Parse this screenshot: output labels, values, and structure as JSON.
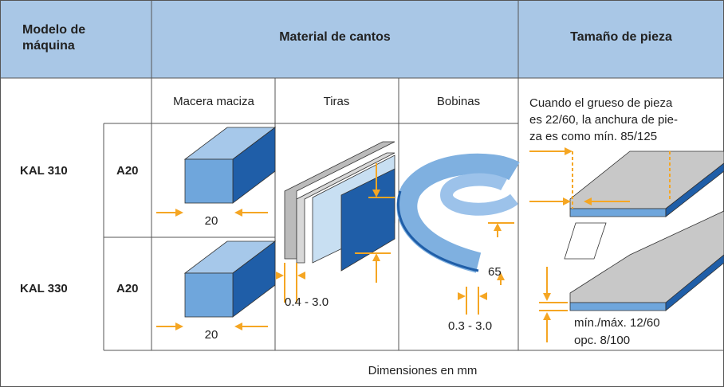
{
  "header": {
    "cells": [
      [
        "Modelo de",
        "máquina"
      ],
      [
        "Material de cantos"
      ],
      [
        "Tamaño de pieza"
      ]
    ]
  },
  "subheader": [
    "Macera maciza",
    "Tiras",
    "Bobinas"
  ],
  "note": [
    "Cuando el grueso de pieza",
    "es 22/60, la anchura de pie-",
    "za es como mín. 85/125"
  ],
  "rows": [
    {
      "model": "KAL 310",
      "unit": "A20",
      "width_label": "20"
    },
    {
      "model": "KAL 330",
      "unit": "A20",
      "width_label": "20"
    }
  ],
  "strip_thickness": "0.4 - 3.0",
  "coil_height": "65",
  "coil_thickness": "0.3 - 3.0",
  "piece_thickness": [
    "mín./máx. 12/60",
    "opc. 8/100"
  ],
  "footer": "Dimensiones en mm"
}
